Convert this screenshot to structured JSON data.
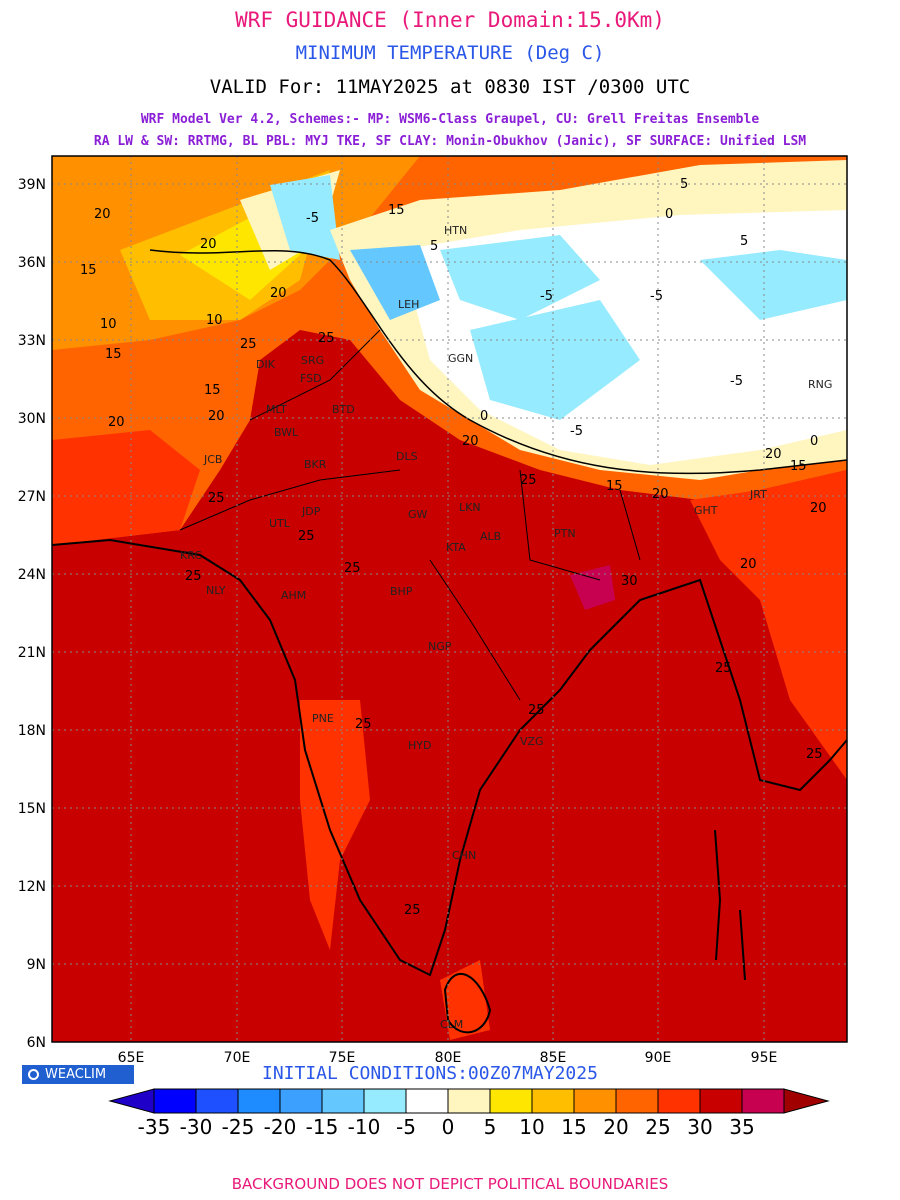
{
  "header": {
    "title": "WRF GUIDANCE (Inner Domain:15.0Km)",
    "variable": "MINIMUM TEMPERATURE (Deg C)",
    "valid": "VALID For: 11MAY2025 at 0830 IST /0300 UTC",
    "model_line1": "WRF Model Ver 4.2, Schemes:- MP: WSM6-Class Graupel, CU: Grell Freitas Ensemble",
    "model_line2": "RA LW & SW: RRTMG, BL PBL: MYJ TKE, SF CLAY: Monin-Obukhov (Janic), SF SURFACE: Unified LSM"
  },
  "map": {
    "lat_ticks": [
      "39N",
      "36N",
      "33N",
      "30N",
      "27N",
      "24N",
      "21N",
      "18N",
      "15N",
      "12N",
      "9N",
      "6N"
    ],
    "lon_ticks": [
      "65E",
      "70E",
      "75E",
      "80E",
      "85E",
      "90E",
      "95E"
    ],
    "contour_labels": [
      "-5",
      "0",
      "5",
      "10",
      "15",
      "20",
      "25",
      "30"
    ],
    "stations": [
      "SRG",
      "FSD",
      "DIK",
      "MLT",
      "BTD",
      "BWL",
      "BKR",
      "JCB",
      "DLS",
      "LKN",
      "JDP",
      "UTL",
      "KRC",
      "AHM",
      "BHP",
      "NGP",
      "PNE",
      "HYD",
      "VZG",
      "CHN",
      "PTN",
      "GHT",
      "JRT",
      "HTN",
      "GGN",
      "RNG",
      "LEH",
      "CLM",
      "ALB",
      "KTA",
      "NLY",
      "GW"
    ]
  },
  "colorbar": {
    "labels": [
      "-35",
      "-30",
      "-25",
      "-20",
      "-15",
      "-10",
      "-5",
      "0",
      "5",
      "10",
      "15",
      "20",
      "25",
      "30",
      "35"
    ],
    "colors": [
      "#1e00c8",
      "#0000ff",
      "#1e50ff",
      "#1e8cff",
      "#3ca0ff",
      "#64c8ff",
      "#96ebff",
      "#ffffff",
      "#fff5bf",
      "#ffe600",
      "#ffbf00",
      "#ff9100",
      "#ff6400",
      "#ff3200",
      "#c80000",
      "#c80050",
      "#a00000"
    ]
  },
  "logo": {
    "label": "WEACLIM",
    "icon": "copyright-icon"
  },
  "initial_conditions": "INITIAL CONDITIONS:00Z07MAY2025",
  "footer": "BACKGROUND DOES NOT DEPICT POLITICAL BOUNDARIES"
}
